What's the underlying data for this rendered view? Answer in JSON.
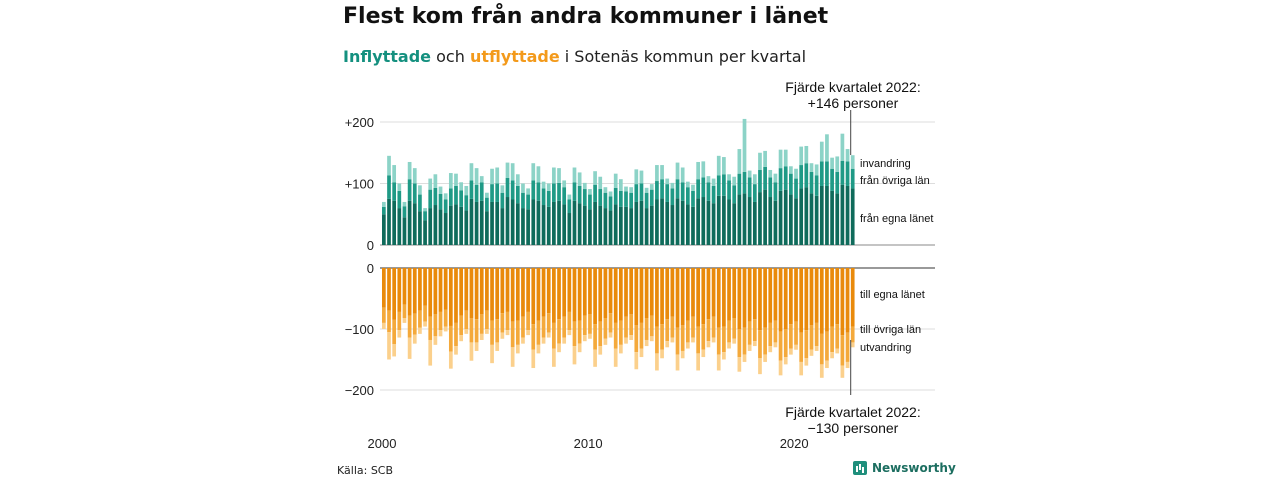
{
  "header": {
    "title": "Flest kom från andra kommuner i länet",
    "subtitle_in": "Inflyttade",
    "subtitle_mid": " och ",
    "subtitle_out": "utflyttade",
    "subtitle_rest": " i Sotenäs kommun per kvartal"
  },
  "footer": {
    "source": "Källa: SCB",
    "brand": "Newsworthy"
  },
  "colors": {
    "in_own_county": "#0f6b5b",
    "in_other_counties": "#1f9a86",
    "in_immigration": "#8cd3c7",
    "out_own_county": "#e98a0b",
    "out_other_counties": "#f4a93b",
    "out_emigration": "#fbd08c",
    "grid": "#dddddd",
    "axis": "#333333"
  },
  "chart_data": {
    "type": "bar",
    "stacked": true,
    "diverging": true,
    "period": "quarterly",
    "start": "2000 Q1",
    "end": "2022 Q4",
    "x_tick_labels": [
      "2000",
      "2010",
      "2020"
    ],
    "y_ticks_in": [
      "+200",
      "+100",
      "0"
    ],
    "y_ticks_out": [
      "0",
      "−100",
      "−200"
    ],
    "ylim_in": [
      0,
      200
    ],
    "ylim_out": [
      -200,
      0
    ],
    "annotation_in": [
      "Fjärde kvartalet 2022:",
      "+146 personer"
    ],
    "annotation_out": [
      "Fjärde kvartalet 2022:",
      "−130 personer"
    ],
    "series_in": [
      {
        "name": "från egna länet",
        "values": [
          50,
          75,
          72,
          60,
          45,
          72,
          68,
          55,
          40,
          60,
          65,
          58,
          52,
          64,
          66,
          62,
          56,
          75,
          70,
          72,
          55,
          70,
          70,
          60,
          78,
          74,
          68,
          60,
          58,
          74,
          72,
          65,
          62,
          70,
          72,
          66,
          52,
          72,
          68,
          64,
          58,
          70,
          64,
          60,
          56,
          66,
          62,
          62,
          60,
          70,
          72,
          60,
          64,
          74,
          76,
          70,
          65,
          76,
          72,
          66,
          62,
          76,
          78,
          72,
          68,
          80,
          80,
          74,
          68,
          82,
          84,
          78,
          70,
          86,
          90,
          78,
          72,
          88,
          90,
          82,
          76,
          92,
          94,
          84,
          80,
          96,
          96,
          88,
          84,
          98,
          96,
          92
        ]
      },
      {
        "name": "från övriga län",
        "values": [
          12,
          38,
          30,
          28,
          18,
          35,
          32,
          27,
          15,
          30,
          28,
          25,
          22,
          28,
          30,
          27,
          25,
          30,
          28,
          30,
          22,
          29,
          30,
          25,
          31,
          31,
          28,
          25,
          24,
          31,
          30,
          27,
          26,
          30,
          29,
          28,
          22,
          30,
          28,
          27,
          24,
          28,
          27,
          25,
          23,
          27,
          26,
          25,
          25,
          29,
          28,
          25,
          26,
          30,
          31,
          29,
          27,
          31,
          30,
          28,
          26,
          31,
          32,
          30,
          28,
          33,
          35,
          31,
          29,
          34,
          35,
          32,
          29,
          36,
          37,
          32,
          30,
          37,
          38,
          34,
          32,
          38,
          39,
          35,
          33,
          40,
          40,
          36,
          35,
          39,
          40,
          32
        ]
      },
      {
        "name": "invandring",
        "values": [
          8,
          32,
          28,
          12,
          7,
          28,
          25,
          15,
          5,
          18,
          22,
          12,
          10,
          25,
          20,
          13,
          15,
          28,
          27,
          10,
          8,
          25,
          26,
          12,
          25,
          28,
          19,
          15,
          10,
          28,
          26,
          11,
          12,
          26,
          24,
          11,
          8,
          24,
          22,
          10,
          9,
          22,
          20,
          9,
          8,
          23,
          19,
          8,
          9,
          24,
          21,
          8,
          9,
          26,
          23,
          9,
          9,
          27,
          24,
          9,
          10,
          28,
          26,
          10,
          12,
          32,
          28,
          10,
          14,
          40,
          86,
          11,
          16,
          28,
          26,
          12,
          14,
          30,
          27,
          12,
          16,
          30,
          28,
          14,
          18,
          32,
          44,
          18,
          25,
          44,
          20,
          22
        ]
      }
    ],
    "series_out": [
      {
        "name": "till egna länet",
        "values": [
          -65,
          -70,
          -85,
          -72,
          -60,
          -78,
          -75,
          -70,
          -62,
          -80,
          -76,
          -72,
          -68,
          -95,
          -90,
          -78,
          -70,
          -82,
          -84,
          -76,
          -70,
          -86,
          -84,
          -74,
          -72,
          -88,
          -86,
          -80,
          -72,
          -92,
          -86,
          -80,
          -74,
          -90,
          -84,
          -80,
          -72,
          -88,
          -86,
          -78,
          -76,
          -92,
          -88,
          -82,
          -74,
          -90,
          -86,
          -80,
          -76,
          -94,
          -90,
          -82,
          -78,
          -96,
          -92,
          -84,
          -80,
          -98,
          -94,
          -86,
          -80,
          -96,
          -92,
          -84,
          -80,
          -98,
          -96,
          -86,
          -82,
          -100,
          -98,
          -88,
          -84,
          -102,
          -98,
          -90,
          -86,
          -104,
          -100,
          -92,
          -88,
          -106,
          -102,
          -94,
          -90,
          -108,
          -104,
          -96,
          -92,
          -110,
          -106,
          -96
        ]
      },
      {
        "name": "till övriga län",
        "values": [
          -25,
          -35,
          -40,
          -30,
          -22,
          -36,
          -34,
          -28,
          -26,
          -38,
          -36,
          -30,
          -28,
          -42,
          -38,
          -32,
          -30,
          -40,
          -38,
          -32,
          -30,
          -40,
          -38,
          -32,
          -30,
          -42,
          -40,
          -34,
          -30,
          -42,
          -40,
          -34,
          -32,
          -42,
          -40,
          -34,
          -30,
          -40,
          -38,
          -32,
          -32,
          -42,
          -40,
          -34,
          -32,
          -42,
          -40,
          -34,
          -34,
          -44,
          -42,
          -36,
          -34,
          -44,
          -42,
          -36,
          -34,
          -44,
          -42,
          -36,
          -34,
          -44,
          -42,
          -36,
          -34,
          -44,
          -42,
          -36,
          -34,
          -46,
          -44,
          -38,
          -36,
          -46,
          -44,
          -38,
          -36,
          -48,
          -46,
          -40,
          -38,
          -48,
          -46,
          -40,
          -38,
          -50,
          -48,
          -42,
          -40,
          -50,
          -48,
          -26
        ]
      },
      {
        "name": "utvandring",
        "values": [
          -10,
          -45,
          -20,
          -12,
          -8,
          -35,
          -15,
          -10,
          -8,
          -42,
          -14,
          -10,
          -8,
          -28,
          -14,
          -10,
          -8,
          -30,
          -14,
          -10,
          -8,
          -30,
          -14,
          -10,
          -8,
          -32,
          -14,
          -10,
          -8,
          -30,
          -14,
          -10,
          -8,
          -30,
          -14,
          -10,
          -8,
          -30,
          -14,
          -10,
          -8,
          -28,
          -14,
          -10,
          -8,
          -30,
          -14,
          -10,
          -8,
          -28,
          -14,
          -10,
          -8,
          -28,
          -14,
          -10,
          -8,
          -26,
          -12,
          -10,
          -8,
          -28,
          -12,
          -10,
          -8,
          -26,
          -12,
          -10,
          -8,
          -24,
          -12,
          -10,
          -8,
          -26,
          -12,
          -10,
          -8,
          -24,
          -12,
          -10,
          -8,
          -22,
          -12,
          -10,
          -8,
          -22,
          -12,
          -10,
          -8,
          -20,
          -10,
          -8
        ]
      }
    ]
  }
}
